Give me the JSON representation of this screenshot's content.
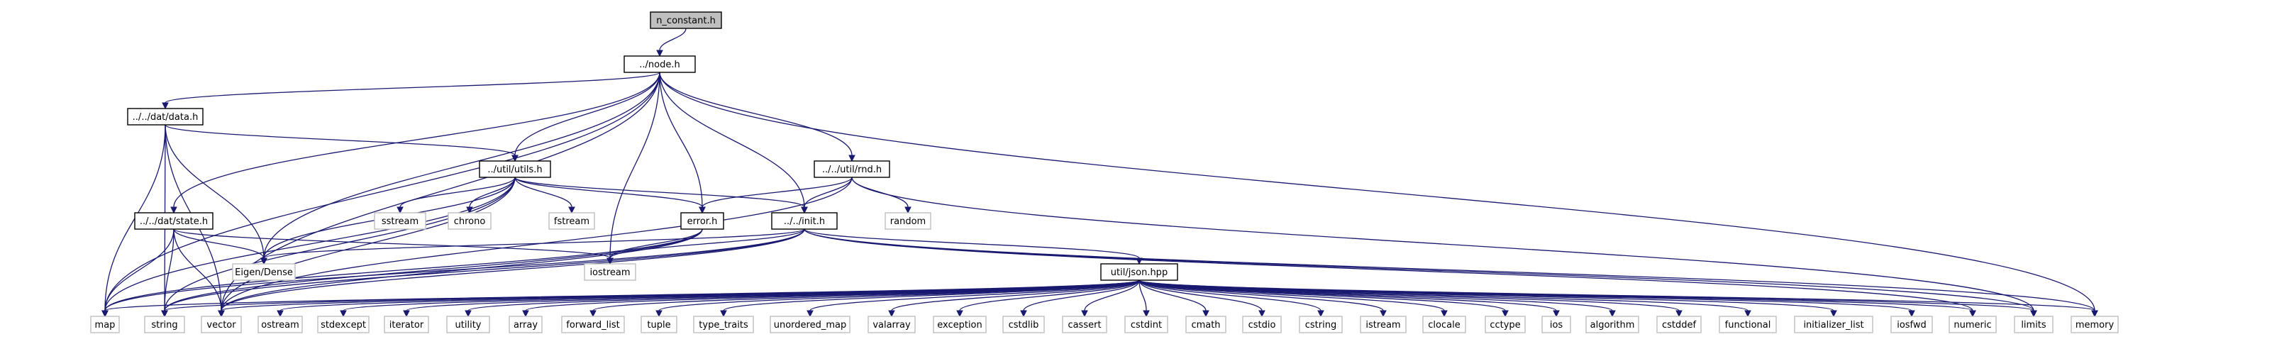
{
  "graph": {
    "nodes": [
      {
        "id": "root",
        "label": "n_constant.h",
        "kind": "root"
      },
      {
        "id": "node",
        "label": "../node.h",
        "kind": "local"
      },
      {
        "id": "data",
        "label": "../../dat/data.h",
        "kind": "local"
      },
      {
        "id": "utils",
        "label": "../util/utils.h",
        "kind": "local"
      },
      {
        "id": "rnd",
        "label": "../../util/rnd.h",
        "kind": "local"
      },
      {
        "id": "state",
        "label": "../../dat/state.h",
        "kind": "local"
      },
      {
        "id": "error",
        "label": "error.h",
        "kind": "local"
      },
      {
        "id": "init",
        "label": "../../init.h",
        "kind": "local"
      },
      {
        "id": "json",
        "label": "util/json.hpp",
        "kind": "local"
      },
      {
        "id": "sstream",
        "label": "sstream",
        "kind": "system"
      },
      {
        "id": "chrono",
        "label": "chrono",
        "kind": "system"
      },
      {
        "id": "fstream",
        "label": "fstream",
        "kind": "system"
      },
      {
        "id": "random",
        "label": "random",
        "kind": "system"
      },
      {
        "id": "eigen",
        "label": "Eigen/Dense",
        "kind": "system"
      },
      {
        "id": "iostream",
        "label": "iostream",
        "kind": "system"
      },
      {
        "id": "map",
        "label": "map",
        "kind": "system"
      },
      {
        "id": "string",
        "label": "string",
        "kind": "system"
      },
      {
        "id": "vector",
        "label": "vector",
        "kind": "system"
      },
      {
        "id": "ostream",
        "label": "ostream",
        "kind": "system"
      },
      {
        "id": "stdexcept",
        "label": "stdexcept",
        "kind": "system"
      },
      {
        "id": "iterator",
        "label": "iterator",
        "kind": "system"
      },
      {
        "id": "utility",
        "label": "utility",
        "kind": "system"
      },
      {
        "id": "array",
        "label": "array",
        "kind": "system"
      },
      {
        "id": "forward_list",
        "label": "forward_list",
        "kind": "system"
      },
      {
        "id": "tuple",
        "label": "tuple",
        "kind": "system"
      },
      {
        "id": "type_traits",
        "label": "type_traits",
        "kind": "system"
      },
      {
        "id": "unordered_map",
        "label": "unordered_map",
        "kind": "system"
      },
      {
        "id": "valarray",
        "label": "valarray",
        "kind": "system"
      },
      {
        "id": "exception",
        "label": "exception",
        "kind": "system"
      },
      {
        "id": "cstdlib",
        "label": "cstdlib",
        "kind": "system"
      },
      {
        "id": "cassert",
        "label": "cassert",
        "kind": "system"
      },
      {
        "id": "cstdint",
        "label": "cstdint",
        "kind": "system"
      },
      {
        "id": "cmath",
        "label": "cmath",
        "kind": "system"
      },
      {
        "id": "cstdio",
        "label": "cstdio",
        "kind": "system"
      },
      {
        "id": "cstring",
        "label": "cstring",
        "kind": "system"
      },
      {
        "id": "istream",
        "label": "istream",
        "kind": "system"
      },
      {
        "id": "clocale",
        "label": "clocale",
        "kind": "system"
      },
      {
        "id": "cctype",
        "label": "cctype",
        "kind": "system"
      },
      {
        "id": "ios",
        "label": "ios",
        "kind": "system"
      },
      {
        "id": "algorithm",
        "label": "algorithm",
        "kind": "system"
      },
      {
        "id": "cstddef",
        "label": "cstddef",
        "kind": "system"
      },
      {
        "id": "functional",
        "label": "functional",
        "kind": "system"
      },
      {
        "id": "initializer_list",
        "label": "initializer_list",
        "kind": "system"
      },
      {
        "id": "iosfwd",
        "label": "iosfwd",
        "kind": "system"
      },
      {
        "id": "numeric",
        "label": "numeric",
        "kind": "system"
      },
      {
        "id": "limits",
        "label": "limits",
        "kind": "system"
      },
      {
        "id": "memory",
        "label": "memory",
        "kind": "system"
      }
    ],
    "edges": [
      [
        "root",
        "node"
      ],
      [
        "node",
        "data"
      ],
      [
        "node",
        "utils"
      ],
      [
        "node",
        "rnd"
      ],
      [
        "node",
        "state"
      ],
      [
        "node",
        "error"
      ],
      [
        "node",
        "init"
      ],
      [
        "node",
        "eigen"
      ],
      [
        "node",
        "iostream"
      ],
      [
        "node",
        "map"
      ],
      [
        "node",
        "vector"
      ],
      [
        "node",
        "memory"
      ],
      [
        "data",
        "utils"
      ],
      [
        "data",
        "eigen"
      ],
      [
        "data",
        "map"
      ],
      [
        "data",
        "string"
      ],
      [
        "data",
        "vector"
      ],
      [
        "utils",
        "error"
      ],
      [
        "utils",
        "init"
      ],
      [
        "utils",
        "eigen"
      ],
      [
        "utils",
        "sstream"
      ],
      [
        "utils",
        "chrono"
      ],
      [
        "utils",
        "fstream"
      ],
      [
        "utils",
        "map"
      ],
      [
        "utils",
        "string"
      ],
      [
        "utils",
        "vector"
      ],
      [
        "rnd",
        "error"
      ],
      [
        "rnd",
        "init"
      ],
      [
        "rnd",
        "random"
      ],
      [
        "rnd",
        "vector"
      ],
      [
        "rnd",
        "limits"
      ],
      [
        "state",
        "eigen"
      ],
      [
        "state",
        "iostream"
      ],
      [
        "state",
        "map"
      ],
      [
        "state",
        "string"
      ],
      [
        "state",
        "vector"
      ],
      [
        "error",
        "iostream"
      ],
      [
        "error",
        "map"
      ],
      [
        "error",
        "string"
      ],
      [
        "error",
        "vector"
      ],
      [
        "init",
        "json"
      ],
      [
        "init",
        "eigen"
      ],
      [
        "init",
        "iostream"
      ],
      [
        "init",
        "map"
      ],
      [
        "init",
        "string"
      ],
      [
        "init",
        "vector"
      ],
      [
        "init",
        "memory"
      ],
      [
        "init",
        "limits"
      ],
      [
        "init",
        "numeric"
      ],
      [
        "json",
        "map"
      ],
      [
        "json",
        "string"
      ],
      [
        "json",
        "vector"
      ],
      [
        "json",
        "ostream"
      ],
      [
        "json",
        "stdexcept"
      ],
      [
        "json",
        "iterator"
      ],
      [
        "json",
        "utility"
      ],
      [
        "json",
        "array"
      ],
      [
        "json",
        "forward_list"
      ],
      [
        "json",
        "tuple"
      ],
      [
        "json",
        "type_traits"
      ],
      [
        "json",
        "unordered_map"
      ],
      [
        "json",
        "valarray"
      ],
      [
        "json",
        "exception"
      ],
      [
        "json",
        "cstdlib"
      ],
      [
        "json",
        "cassert"
      ],
      [
        "json",
        "cstdint"
      ],
      [
        "json",
        "cmath"
      ],
      [
        "json",
        "cstdio"
      ],
      [
        "json",
        "cstring"
      ],
      [
        "json",
        "istream"
      ],
      [
        "json",
        "clocale"
      ],
      [
        "json",
        "cctype"
      ],
      [
        "json",
        "ios"
      ],
      [
        "json",
        "algorithm"
      ],
      [
        "json",
        "cstddef"
      ],
      [
        "json",
        "functional"
      ],
      [
        "json",
        "initializer_list"
      ],
      [
        "json",
        "iosfwd"
      ],
      [
        "json",
        "numeric"
      ],
      [
        "json",
        "limits"
      ],
      [
        "json",
        "memory"
      ]
    ]
  },
  "colors": {
    "edge": "#191970",
    "root_fill": "#bfbfbf",
    "local_stroke": "#000000",
    "system_stroke": "#bfbfbf",
    "system_text": "#000000"
  }
}
